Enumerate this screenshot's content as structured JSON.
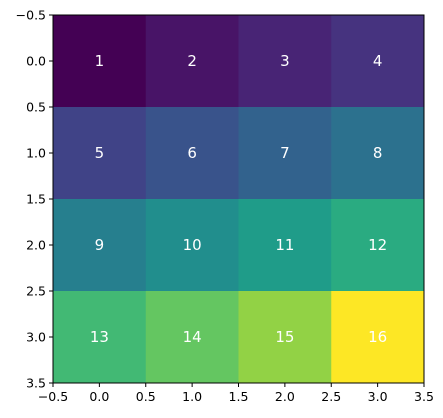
{
  "chart_data": {
    "type": "heatmap",
    "title": "",
    "xlabel": "",
    "ylabel": "",
    "colormap": "viridis",
    "xlim": [
      -0.5,
      3.5
    ],
    "ylim": [
      3.5,
      -0.5
    ],
    "y_inverted": true,
    "grid": false,
    "values": [
      [
        1,
        2,
        3,
        4
      ],
      [
        5,
        6,
        7,
        8
      ],
      [
        9,
        10,
        11,
        12
      ],
      [
        13,
        14,
        15,
        16
      ]
    ],
    "value_range": [
      1,
      16
    ],
    "x_ticks": [
      -0.5,
      0.0,
      0.5,
      1.0,
      1.5,
      2.0,
      2.5,
      3.0,
      3.5
    ],
    "y_ticks": [
      -0.5,
      0.0,
      0.5,
      1.0,
      1.5,
      2.0,
      2.5,
      3.0,
      3.5
    ],
    "x_tick_labels": [
      "−0.5",
      "0.0",
      "0.5",
      "1.0",
      "1.5",
      "2.0",
      "2.5",
      "3.0",
      "3.5"
    ],
    "y_tick_labels": [
      "−0.5",
      "0.0",
      "0.5",
      "1.0",
      "1.5",
      "2.0",
      "2.5",
      "3.0",
      "3.5"
    ],
    "cell_label_color": "#ffffff"
  }
}
